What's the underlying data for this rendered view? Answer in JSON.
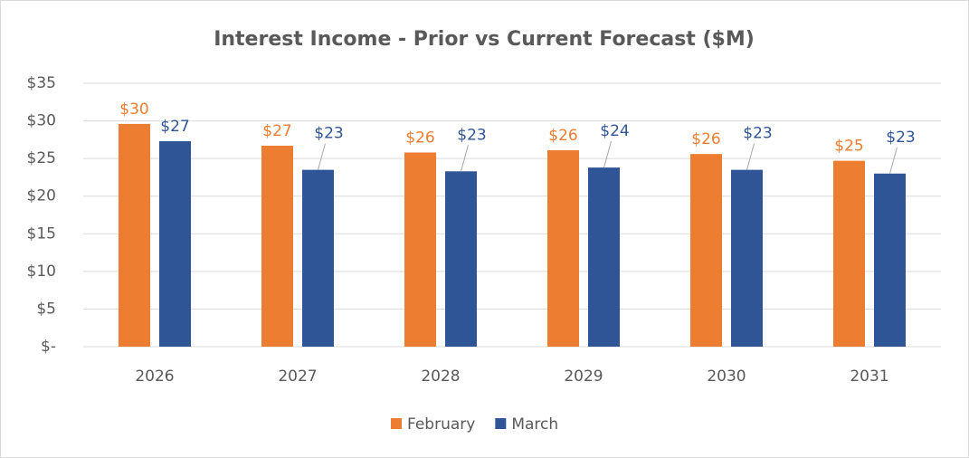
{
  "chart_data": {
    "type": "bar",
    "title": "Interest Income - Prior vs Current Forecast ($M)",
    "categories": [
      "2026",
      "2027",
      "2028",
      "2029",
      "2030",
      "2031"
    ],
    "series": [
      {
        "name": "February",
        "color": "#ed7d31",
        "values": [
          29.6,
          26.7,
          25.8,
          26.1,
          25.6,
          24.7
        ],
        "value_labels": [
          "$30",
          "$27",
          "$26",
          "$26",
          "$26",
          "$25"
        ]
      },
      {
        "name": "March",
        "color": "#2f5597",
        "values": [
          27.3,
          23.5,
          23.3,
          23.8,
          23.5,
          23.0
        ],
        "value_labels": [
          "$27",
          "$23",
          "$23",
          "$24",
          "$23",
          "$23"
        ]
      }
    ],
    "ylim": [
      0,
      35
    ],
    "yticks": [
      {
        "value": 0,
        "label": "$-"
      },
      {
        "value": 5,
        "label": "$5"
      },
      {
        "value": 10,
        "label": "$10"
      },
      {
        "value": 15,
        "label": "$15"
      },
      {
        "value": 20,
        "label": "$20"
      },
      {
        "value": 25,
        "label": "$25"
      },
      {
        "value": 30,
        "label": "$30"
      },
      {
        "value": 35,
        "label": "$35"
      }
    ],
    "grid": true,
    "legend": "bottom"
  }
}
